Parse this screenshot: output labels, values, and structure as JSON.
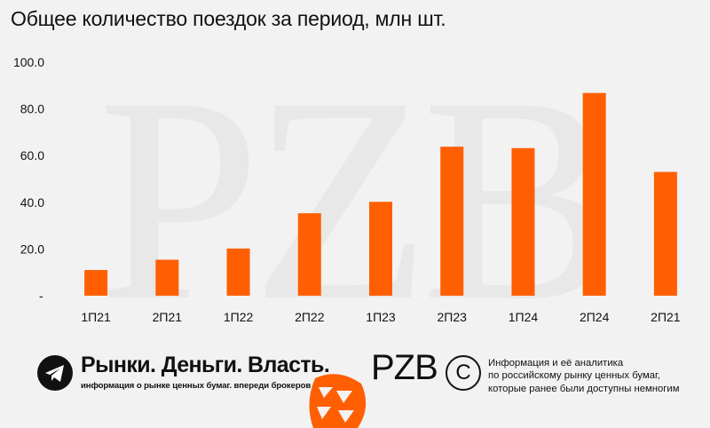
{
  "chart_data": {
    "type": "bar",
    "title": "Общее количество поездок за период, млн шт.",
    "categories": [
      "1П21",
      "2П21",
      "1П22",
      "2П22",
      "1П23",
      "2П23",
      "1П24",
      "2П24",
      "2П21"
    ],
    "values": [
      11.0,
      15.4,
      20.2,
      35.3,
      40.2,
      63.8,
      63.2,
      86.8,
      53.0
    ],
    "y_ticks": [
      "-",
      "20.0",
      "40.0",
      "60.0",
      "80.0",
      "100.0"
    ],
    "ylim": [
      0,
      100
    ],
    "xlabel": "",
    "ylabel": "",
    "grid": false,
    "bar_color": "#ff5f00"
  },
  "watermark": "PZB",
  "footer": {
    "brand": "Рынки. Деньги. Власть.",
    "brand_sub": "информация о рынке ценных бумаг. впереди брокеров и банков.",
    "logo": "PZB",
    "copyright_symbol": "C",
    "info_lines": [
      "Информация и её аналитика",
      "по российскому рынку ценных бумаг,",
      "которые ранее были доступны немногим"
    ],
    "accent_color": "#ff5f00",
    "telegram_icon": "telegram-icon"
  }
}
